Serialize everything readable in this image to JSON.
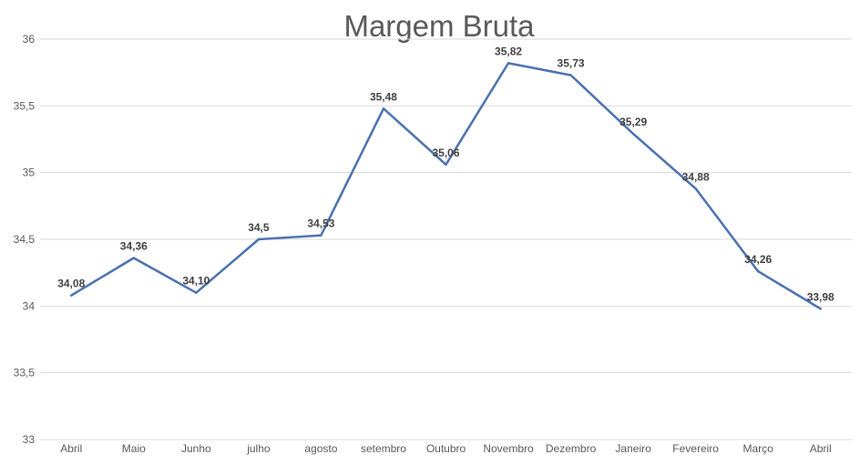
{
  "chart_data": {
    "type": "line",
    "title": "Margem Bruta",
    "xlabel": "",
    "ylabel": "",
    "categories": [
      "Abril",
      "Maio",
      "Junho",
      "julho",
      "agosto",
      "setembro",
      "Outubro",
      "Novembro",
      "Dezembro",
      "Janeiro",
      "Fevereiro",
      "Março",
      "Abril"
    ],
    "series": [
      {
        "values": [
          34.08,
          34.36,
          34.1,
          34.5,
          34.53,
          35.48,
          35.06,
          35.82,
          35.73,
          35.29,
          34.88,
          34.26,
          33.98
        ],
        "labels": [
          "34,08",
          "34,36",
          "34,10",
          "34,5",
          "34,53",
          "35,48",
          "35,06",
          "35,82",
          "35,73",
          "35,29",
          "34,88",
          "34,26",
          "33,98"
        ]
      }
    ],
    "ylim": [
      33,
      36
    ],
    "yticks": [
      33,
      33.5,
      34,
      34.5,
      35,
      35.5,
      36
    ],
    "ytick_labels": [
      "33",
      "33,5",
      "34",
      "34,5",
      "35",
      "35,5",
      "36"
    ],
    "grid": true,
    "legend": "none",
    "colors": {
      "line": "#4a70b0",
      "grid": "#d9d9d9",
      "text": "#595959",
      "data_label": "#404040"
    }
  }
}
